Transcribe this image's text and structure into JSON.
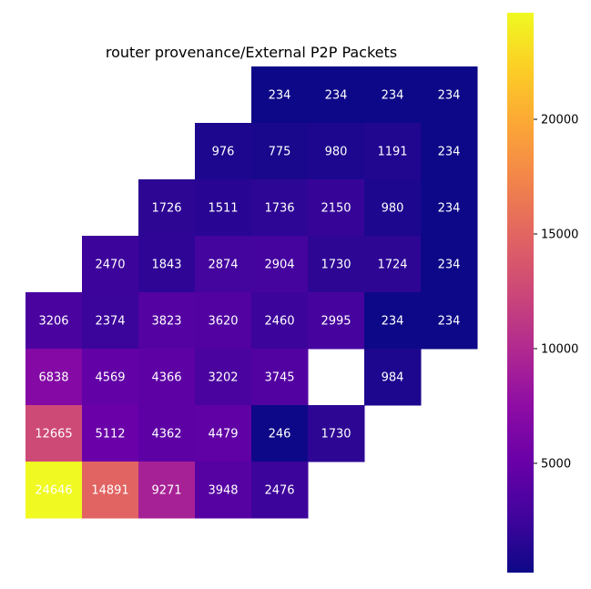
{
  "chart_data": {
    "type": "heatmap",
    "title": "router provenance/External P2P Packets",
    "xlabel": "",
    "ylabel": "",
    "colormap": "plasma",
    "colorbar": {
      "vmin": 234,
      "vmax": 24646,
      "ticks": [
        5000,
        10000,
        15000,
        20000
      ],
      "tick_labels": [
        "5000",
        "10000",
        "15000",
        "20000"
      ]
    },
    "rows": [
      [
        null,
        null,
        null,
        null,
        234,
        234,
        234,
        234
      ],
      [
        null,
        null,
        null,
        976,
        775,
        980,
        1191,
        234
      ],
      [
        null,
        null,
        1726,
        1511,
        1736,
        2150,
        980,
        234
      ],
      [
        null,
        2470,
        1843,
        2874,
        2904,
        1730,
        1724,
        234
      ],
      [
        3206,
        2374,
        3823,
        3620,
        2460,
        2995,
        234,
        234
      ],
      [
        6838,
        4569,
        4366,
        3202,
        3745,
        null,
        984,
        null
      ],
      [
        12665,
        5112,
        4362,
        4479,
        246,
        1730,
        null,
        null
      ],
      [
        24646,
        14891,
        9271,
        3948,
        2476,
        null,
        null,
        null
      ]
    ]
  }
}
